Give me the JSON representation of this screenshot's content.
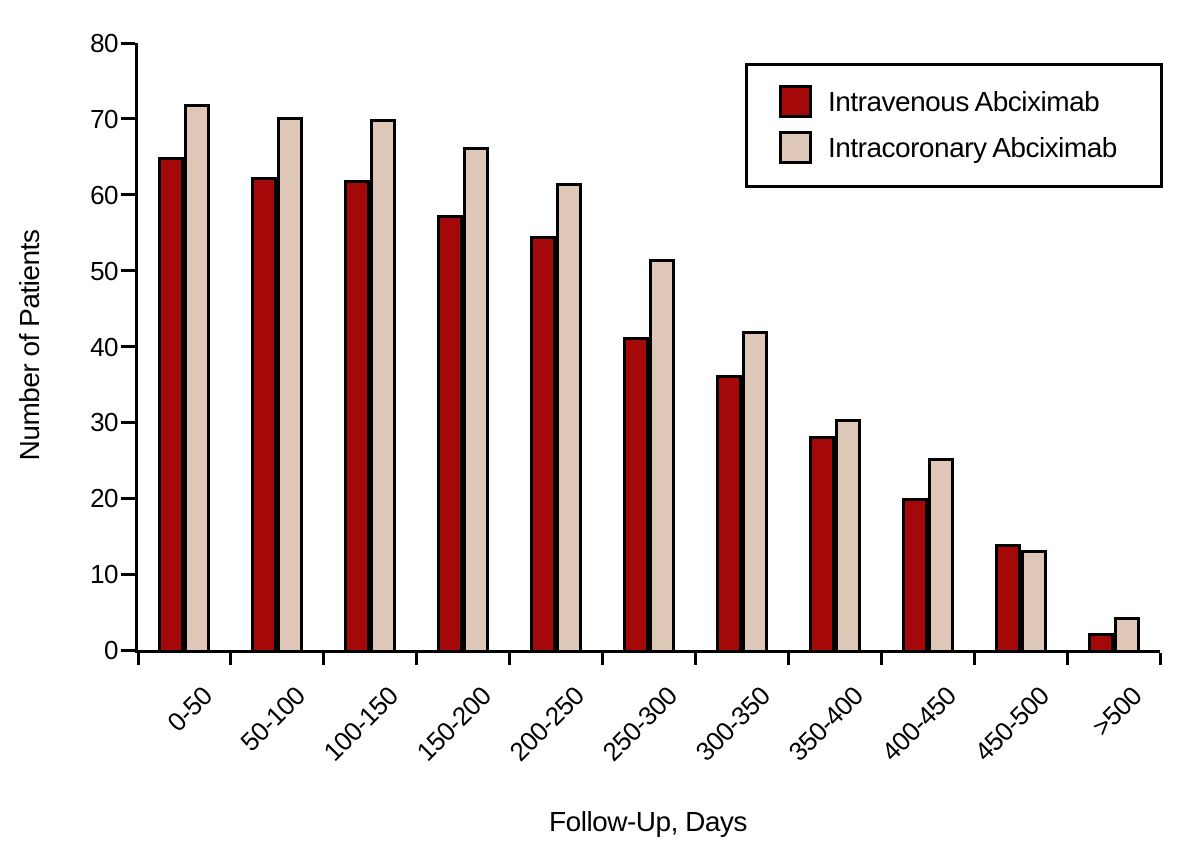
{
  "chart_data": {
    "type": "bar",
    "title": "",
    "xlabel": "Follow-Up, Days",
    "ylabel": "Number of Patients",
    "ylim": [
      0,
      80
    ],
    "yticks": [
      0,
      10,
      20,
      30,
      40,
      50,
      60,
      70,
      80
    ],
    "grid": false,
    "legend_position": "top-right",
    "categories": [
      "0-50",
      "50-100",
      "100-150",
      "150-200",
      "200-250",
      "250-300",
      "300-350",
      "350-400",
      "400-450",
      "450-500",
      ">500"
    ],
    "series": [
      {
        "name": "Intravenous Abciximab",
        "color": "#A40808",
        "values": [
          65,
          62.3,
          62,
          57.3,
          54.5,
          41.3,
          36.3,
          28.2,
          20,
          14,
          2.2
        ]
      },
      {
        "name": "Intracoronary Abciximab",
        "color": "#DFC7B8",
        "values": [
          72,
          70.3,
          70,
          66.3,
          61.5,
          51.5,
          42,
          30.4,
          25.3,
          13.2,
          4.3
        ]
      }
    ],
    "bar_outline_color": "#000000",
    "axis_color": "#000000"
  }
}
